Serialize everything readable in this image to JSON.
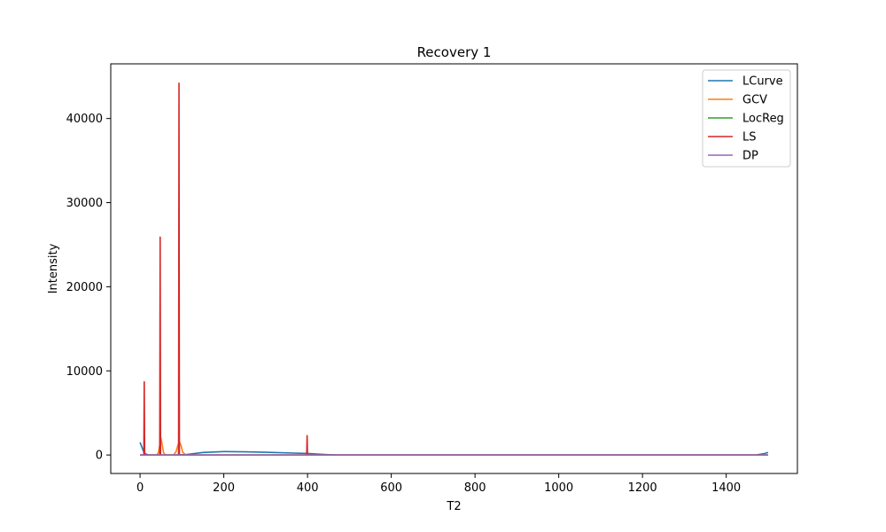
{
  "chart_data": {
    "type": "line",
    "title": "Recovery 1",
    "xlabel": "T2",
    "ylabel": "Intensity",
    "xlim": [
      -70,
      1570
    ],
    "ylim": [
      -2200,
      46500
    ],
    "xticks": [
      0,
      200,
      400,
      600,
      800,
      1000,
      1200,
      1400
    ],
    "yticks": [
      0,
      10000,
      20000,
      30000,
      40000
    ],
    "grid": false,
    "legend": "top-right",
    "series": [
      {
        "name": "LCurve",
        "color": "#1f77b4",
        "x": [
          0,
          10,
          20,
          50,
          80,
          110,
          150,
          200,
          250,
          300,
          350,
          400,
          440,
          470,
          500,
          700,
          1000,
          1200,
          1400,
          1470,
          1490,
          1500
        ],
        "y": [
          1500,
          200,
          0,
          0,
          0,
          50,
          300,
          400,
          380,
          320,
          250,
          180,
          60,
          0,
          0,
          0,
          0,
          0,
          0,
          0,
          150,
          300
        ]
      },
      {
        "name": "GCV",
        "color": "#ff7f0e",
        "x": [
          0,
          40,
          44,
          47,
          50,
          53,
          56,
          60,
          80,
          86,
          90,
          94,
          98,
          102,
          110,
          200,
          400,
          800,
          1200,
          1500
        ],
        "y": [
          0,
          0,
          300,
          1200,
          2000,
          1200,
          300,
          0,
          0,
          400,
          1100,
          1600,
          1100,
          300,
          0,
          0,
          0,
          0,
          0,
          0
        ]
      },
      {
        "name": "LocReg",
        "color": "#2ca02c",
        "x": [
          0,
          1500
        ],
        "y": [
          0,
          0
        ]
      },
      {
        "name": "LS",
        "color": "#d62728",
        "x": [
          0,
          9,
          10,
          11,
          12,
          47,
          48,
          49,
          50,
          92,
          93,
          94,
          95,
          398,
          399,
          400,
          401,
          1500
        ],
        "y": [
          0,
          0,
          8700,
          0,
          0,
          0,
          25900,
          0,
          0,
          0,
          44200,
          0,
          0,
          0,
          2300,
          0,
          0,
          0
        ]
      },
      {
        "name": "DP",
        "color": "#9467bd",
        "x": [
          0,
          1500
        ],
        "y": [
          0,
          0
        ]
      }
    ]
  }
}
